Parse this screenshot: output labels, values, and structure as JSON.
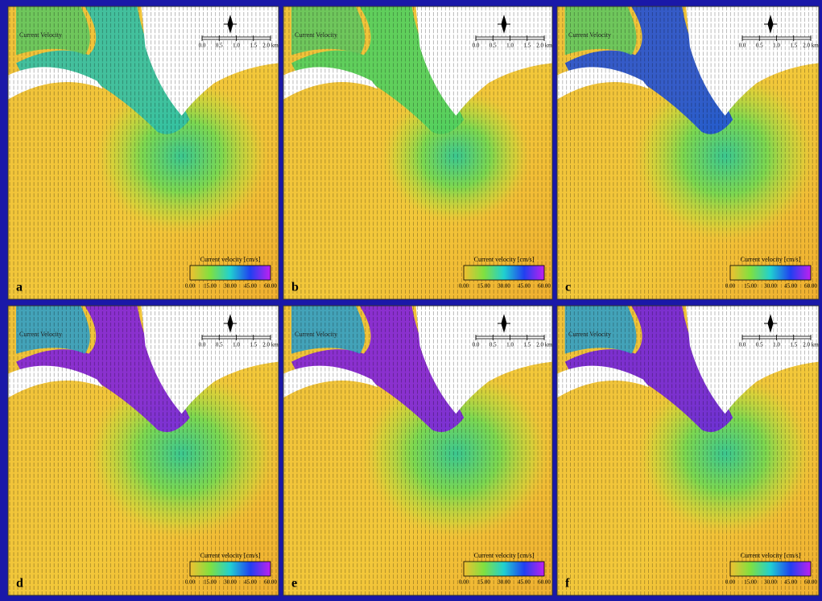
{
  "panels": [
    {
      "label": "a",
      "corner_text": "Current Velocity",
      "legend_title": "Current velocity [cm/s]",
      "colorbar_ticks": [
        "0.00",
        "15.00",
        "30.00",
        "45.00",
        "60.00"
      ],
      "scale_labels": [
        "0.0",
        "0.5",
        "1.0",
        "1.5",
        "2.0 km"
      ]
    },
    {
      "label": "b",
      "corner_text": "Current Velocity",
      "legend_title": "Current velocity [cm/s]",
      "colorbar_ticks": [
        "0.00",
        "15.00",
        "30.00",
        "45.00",
        "60.00"
      ],
      "scale_labels": [
        "0.0",
        "0.5",
        "1.0",
        "1.5",
        "2.0 km"
      ]
    },
    {
      "label": "c",
      "corner_text": "Current Velocity",
      "legend_title": "Current velocity [cm/s]",
      "colorbar_ticks": [
        "0.00",
        "15.00",
        "30.00",
        "45.00",
        "60.00"
      ],
      "scale_labels": [
        "0.0",
        "0.5",
        "1.0",
        "1.5",
        "2.0 km"
      ]
    },
    {
      "label": "d",
      "corner_text": "Current Velocity",
      "legend_title": "Current velocity [cm/s]",
      "colorbar_ticks": [
        "0.00",
        "15.00",
        "30.00",
        "45.00",
        "60.00"
      ],
      "scale_labels": [
        "0.0",
        "0.5",
        "1.0",
        "1.5",
        "2.0 km"
      ]
    },
    {
      "label": "e",
      "corner_text": "Current Velocity",
      "legend_title": "Current velocity [cm/s]",
      "colorbar_ticks": [
        "0.00",
        "15.00",
        "30.00",
        "45.00",
        "60.00"
      ],
      "scale_labels": [
        "0.0",
        "0.5",
        "1.0",
        "1.5",
        "2.0 km"
      ]
    },
    {
      "label": "f",
      "corner_text": "Current Velocity",
      "legend_title": "Current velocity [cm/s]",
      "colorbar_ticks": [
        "0.00",
        "15.00",
        "30.00",
        "45.00",
        "60.00"
      ],
      "scale_labels": [
        "0.0",
        "0.5",
        "1.0",
        "1.5",
        "2.0 km"
      ]
    }
  ]
}
